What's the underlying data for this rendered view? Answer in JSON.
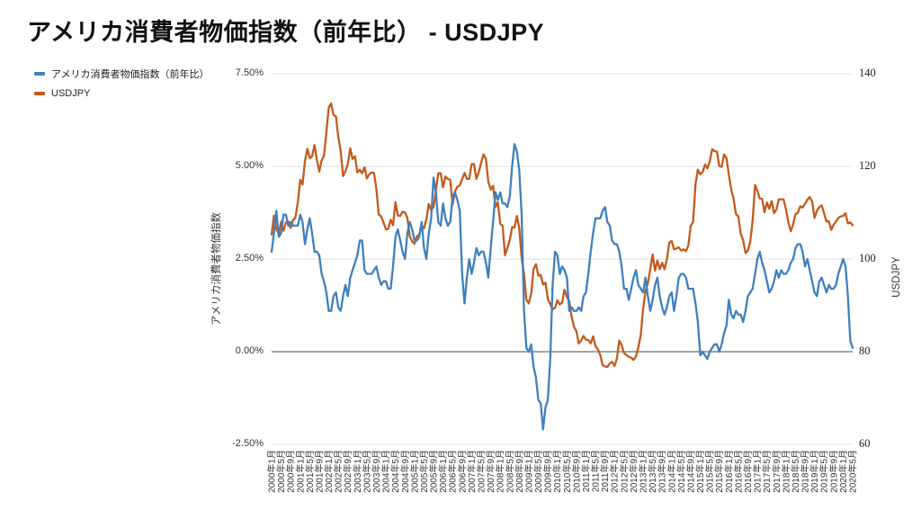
{
  "page": {
    "title": "アメリカ消費者物価指数（前年比） - USDJPY"
  },
  "legend": {
    "items": [
      {
        "label": "アメリカ消費者物価指数（前年比）",
        "color": "#3f80be"
      },
      {
        "label": "USDJPY",
        "color": "#c45a1d"
      }
    ]
  },
  "chart_data": {
    "type": "line",
    "title": "アメリカ消費者物価指数（前年比） - USDJPY",
    "x_start": "2000年1月",
    "x_end": "2020年5月",
    "x_frequency": "monthly",
    "x_tick_every_n_months": 4,
    "x_tick_labels": [
      "2000年1月",
      "2000年5月",
      "2000年9月",
      "2001年1月",
      "2001年5月",
      "2001年9月",
      "2002年1月",
      "2002年5月",
      "2002年9月",
      "2003年1月",
      "2003年5月",
      "2003年9月",
      "2004年1月",
      "2004年5月",
      "2004年9月",
      "2005年1月",
      "2005年5月",
      "2005年9月",
      "2006年1月",
      "2006年5月",
      "2006年9月",
      "2007年1月",
      "2007年5月",
      "2007年9月",
      "2008年1月",
      "2008年5月",
      "2008年9月",
      "2009年1月",
      "2009年5月",
      "2009年9月",
      "2010年1月",
      "2010年5月",
      "2010年9月",
      "2011年1月",
      "2011年5月",
      "2011年9月",
      "2012年1月",
      "2012年5月",
      "2012年9月",
      "2013年1月",
      "2013年5月",
      "2013年9月",
      "2014年1月",
      "2014年5月",
      "2014年9月",
      "2015年1月",
      "2015年5月",
      "2015年9月",
      "2016年1月",
      "2016年5月",
      "2016年9月",
      "2017年1月",
      "2017年5月",
      "2017年9月",
      "2018年1月",
      "2018年5月",
      "2018年9月",
      "2019年1月",
      "2019年5月",
      "2019年9月",
      "2020年1月",
      "2020年5月"
    ],
    "left_axis": {
      "title": "アメリカ消費者物価指数",
      "tick_labels": [
        "7.50%",
        "5.00%",
        "2.50%",
        "0.00%",
        "-2.50%"
      ],
      "tick_values": [
        7.5,
        5.0,
        2.5,
        0.0,
        -2.5
      ],
      "range": [
        -2.5,
        7.5
      ]
    },
    "right_axis": {
      "title": "USDJPY",
      "tick_labels": [
        "140",
        "120",
        "100",
        "80",
        "60"
      ],
      "tick_values": [
        140,
        120,
        100,
        80,
        60
      ],
      "range": [
        60,
        140
      ]
    },
    "grid": {
      "line_color": "#e2e2e2",
      "zero_line_color": "#858585",
      "legend_position": "top-left"
    },
    "series": [
      {
        "name": "アメリカ消費者物価指数（前年比）",
        "axis": "left",
        "color": "#3f80be",
        "values": [
          2.7,
          3.2,
          3.8,
          3.1,
          3.2,
          3.7,
          3.7,
          3.4,
          3.5,
          3.4,
          3.4,
          3.4,
          3.7,
          3.5,
          2.9,
          3.3,
          3.6,
          3.2,
          2.7,
          2.7,
          2.6,
          2.1,
          1.9,
          1.6,
          1.1,
          1.1,
          1.5,
          1.6,
          1.2,
          1.1,
          1.5,
          1.8,
          1.5,
          2.0,
          2.2,
          2.4,
          2.6,
          3.0,
          3.0,
          2.2,
          2.1,
          2.1,
          2.1,
          2.2,
          2.3,
          2.0,
          1.8,
          1.9,
          1.9,
          1.7,
          1.7,
          2.3,
          3.1,
          3.3,
          3.0,
          2.7,
          2.5,
          3.2,
          3.5,
          3.3,
          3.0,
          3.0,
          3.1,
          3.5,
          2.8,
          2.5,
          3.2,
          3.6,
          4.7,
          4.3,
          3.5,
          3.4,
          4.0,
          3.6,
          3.4,
          3.5,
          4.2,
          4.3,
          4.1,
          3.8,
          2.1,
          1.3,
          2.0,
          2.5,
          2.1,
          2.4,
          2.8,
          2.6,
          2.7,
          2.7,
          2.4,
          2.0,
          2.8,
          3.5,
          4.3,
          4.1,
          4.3,
          4.0,
          4.0,
          3.9,
          4.2,
          5.0,
          5.6,
          5.4,
          4.9,
          3.7,
          1.1,
          0.1,
          0.0,
          0.2,
          -0.4,
          -0.7,
          -1.3,
          -1.4,
          -2.1,
          -1.5,
          -1.3,
          -0.2,
          1.8,
          2.7,
          2.6,
          2.1,
          2.3,
          2.2,
          2.0,
          1.1,
          1.2,
          1.1,
          1.1,
          1.2,
          1.1,
          1.5,
          1.6,
          2.1,
          2.7,
          3.2,
          3.6,
          3.6,
          3.6,
          3.8,
          3.9,
          3.5,
          3.4,
          3.0,
          2.9,
          2.9,
          2.7,
          2.3,
          1.7,
          1.7,
          1.4,
          1.7,
          2.0,
          2.2,
          1.8,
          1.7,
          1.6,
          2.0,
          1.5,
          1.1,
          1.4,
          1.8,
          2.0,
          1.5,
          1.2,
          1.0,
          1.2,
          1.5,
          1.6,
          1.1,
          1.5,
          2.0,
          2.1,
          2.1,
          2.0,
          1.7,
          1.7,
          1.7,
          1.3,
          0.8,
          -0.1,
          0.0,
          -0.1,
          -0.2,
          0.0,
          0.1,
          0.2,
          0.2,
          0.0,
          0.2,
          0.5,
          0.7,
          1.4,
          1.0,
          0.9,
          1.1,
          1.0,
          1.0,
          0.8,
          1.1,
          1.5,
          1.6,
          1.7,
          2.1,
          2.5,
          2.7,
          2.4,
          2.2,
          1.9,
          1.6,
          1.7,
          1.9,
          2.2,
          2.0,
          2.2,
          2.1,
          2.1,
          2.2,
          2.4,
          2.5,
          2.8,
          2.9,
          2.9,
          2.7,
          2.3,
          2.5,
          2.2,
          1.9,
          1.6,
          1.5,
          1.9,
          2.0,
          1.8,
          1.6,
          1.8,
          1.7,
          1.7,
          1.8,
          2.1,
          2.3,
          2.5,
          2.3,
          1.5,
          0.3,
          0.1
        ]
      },
      {
        "name": "USDJPY",
        "axis": "right",
        "color": "#c45a1d",
        "values": [
          105.3,
          109.4,
          106.4,
          105.5,
          108.1,
          106.1,
          107.9,
          108.1,
          106.7,
          108.4,
          109.0,
          112.2,
          117.1,
          116.1,
          121.2,
          123.8,
          121.8,
          122.2,
          124.6,
          121.4,
          118.9,
          121.3,
          122.3,
          127.3,
          132.7,
          133.6,
          131.1,
          130.8,
          126.4,
          123.3,
          117.9,
          119.0,
          120.5,
          123.9,
          121.6,
          122.2,
          118.7,
          119.3,
          118.5,
          119.8,
          117.4,
          118.3,
          118.7,
          118.6,
          115.1,
          109.6,
          109.2,
          107.9,
          106.4,
          106.5,
          108.5,
          107.3,
          112.3,
          109.4,
          109.3,
          110.2,
          110.1,
          108.9,
          104.9,
          103.8,
          103.3,
          104.9,
          105.3,
          107.2,
          106.6,
          108.6,
          111.9,
          110.6,
          111.2,
          114.9,
          118.5,
          118.5,
          115.5,
          117.8,
          117.3,
          117.1,
          111.7,
          114.6,
          115.6,
          115.9,
          117.2,
          118.6,
          117.3,
          117.3,
          120.5,
          120.5,
          117.3,
          118.8,
          120.8,
          122.6,
          121.6,
          116.7,
          115.0,
          115.8,
          111.2,
          112.3,
          107.6,
          107.2,
          100.8,
          102.4,
          104.1,
          106.9,
          106.8,
          109.3,
          106.7,
          100.2,
          96.9,
          91.2,
          90.4,
          92.5,
          97.8,
          98.9,
          96.4,
          96.6,
          94.5,
          94.9,
          91.4,
          90.3,
          89.1,
          89.5,
          91.1,
          90.2,
          90.6,
          93.4,
          91.8,
          90.9,
          87.5,
          85.4,
          84.4,
          81.8,
          82.4,
          83.4,
          82.6,
          82.5,
          81.8,
          83.3,
          81.2,
          80.5,
          79.3,
          77.1,
          76.8,
          76.7,
          77.5,
          77.8,
          76.9,
          78.5,
          82.4,
          81.4,
          79.7,
          79.3,
          78.9,
          78.7,
          78.2,
          79.0,
          80.9,
          83.6,
          89.2,
          93.1,
          94.8,
          97.8,
          101.0,
          97.5,
          99.7,
          97.8,
          99.2,
          97.8,
          100.0,
          103.5,
          103.9,
          102.1,
          102.3,
          102.5,
          101.8,
          102.1,
          101.7,
          102.9,
          107.2,
          108.0,
          116.2,
          119.3,
          118.3,
          118.8,
          120.4,
          119.6,
          121.0,
          123.7,
          123.3,
          123.2,
          120.1,
          119.9,
          122.6,
          121.8,
          118.3,
          115.0,
          113.0,
          109.7,
          109.2,
          105.4,
          104.1,
          101.3,
          101.8,
          103.8,
          108.3,
          116.0,
          114.7,
          113.1,
          113.0,
          110.1,
          112.2,
          110.9,
          112.5,
          109.9,
          110.7,
          112.9,
          112.9,
          112.9,
          110.7,
          107.9,
          106.0,
          107.5,
          109.7,
          110.0,
          111.4,
          111.1,
          111.9,
          112.8,
          113.4,
          112.4,
          108.9,
          110.4,
          111.2,
          111.6,
          109.9,
          108.1,
          108.2,
          106.3,
          107.4,
          108.1,
          108.9,
          109.2,
          109.3,
          109.9,
          107.7,
          107.9,
          107.3
        ]
      }
    ]
  }
}
